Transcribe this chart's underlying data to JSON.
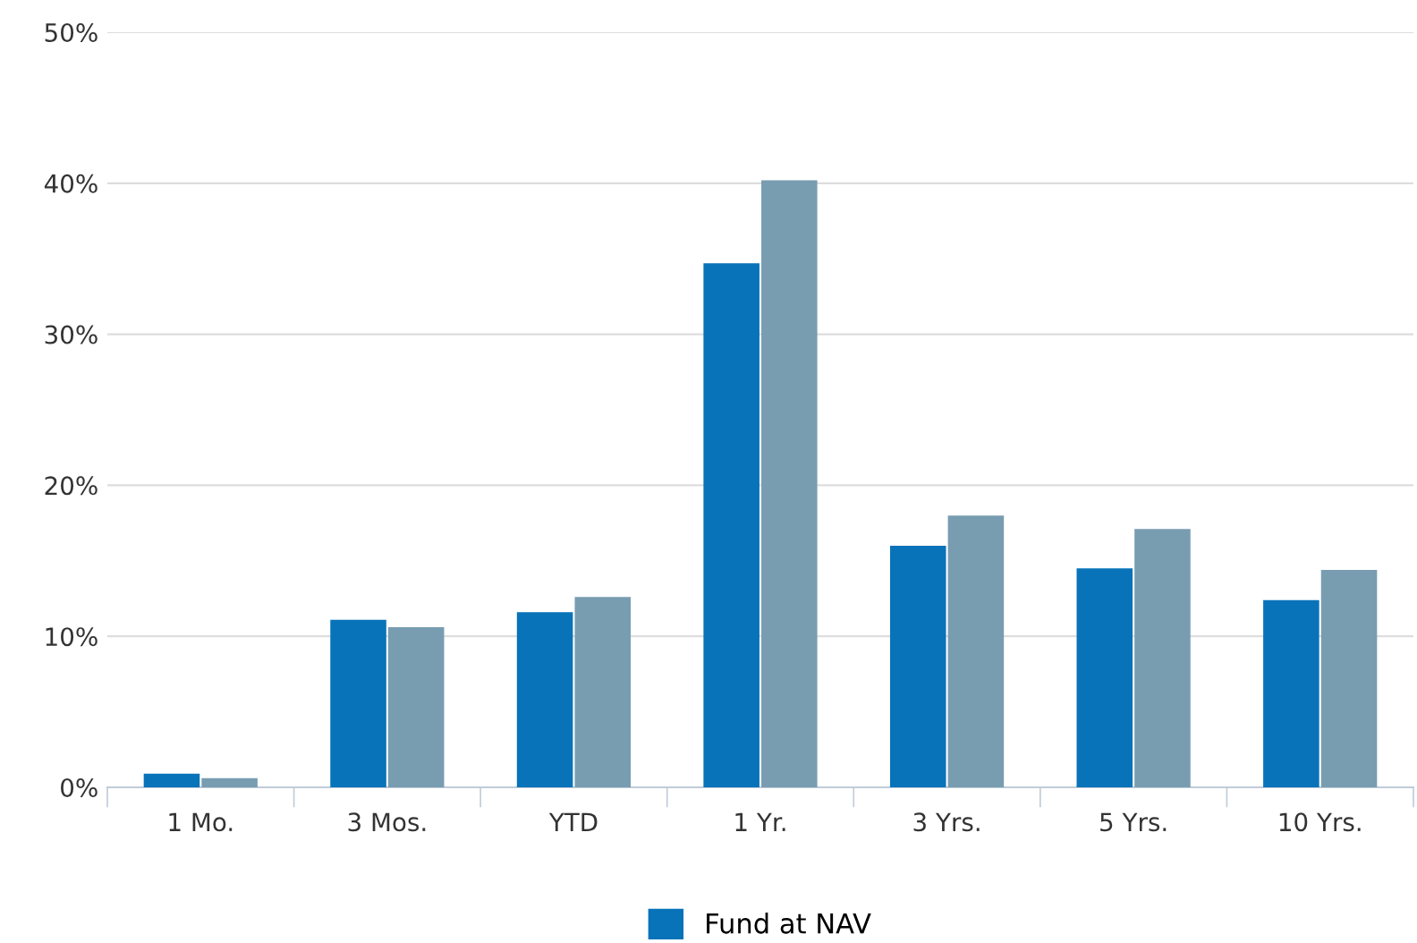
{
  "chart_data": {
    "type": "bar",
    "categories": [
      "1 Mo.",
      "3 Mos.",
      "YTD",
      "1 Yr.",
      "3 Yrs.",
      "5 Yrs.",
      "10 Yrs."
    ],
    "series": [
      {
        "name": "Fund at NAV",
        "color": "#0873b9",
        "values": [
          0.9,
          11.1,
          11.6,
          34.7,
          16.0,
          14.5,
          12.4
        ]
      },
      {
        "color": "#789db1",
        "values": [
          0.6,
          10.6,
          12.6,
          40.2,
          18.0,
          17.1,
          14.4
        ]
      }
    ],
    "ylim": [
      0,
      50
    ],
    "yticks": [
      {
        "value": 0,
        "label": "0%"
      },
      {
        "value": 10,
        "label": "10%"
      },
      {
        "value": 20,
        "label": "20%"
      },
      {
        "value": 30,
        "label": "30%"
      },
      {
        "value": 40,
        "label": "40%"
      },
      {
        "value": 50,
        "label": "50%"
      }
    ],
    "grid": "y",
    "legend": "bottom"
  }
}
